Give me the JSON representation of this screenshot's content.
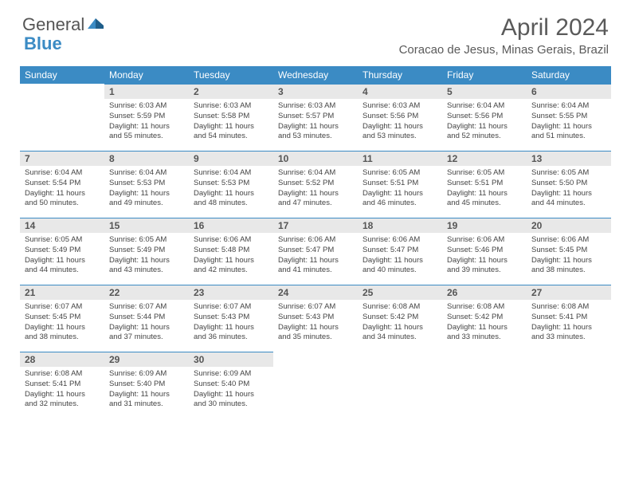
{
  "logo": {
    "word1": "General",
    "word2": "Blue"
  },
  "title": "April 2024",
  "location": "Coracao de Jesus, Minas Gerais, Brazil",
  "colors": {
    "header_bg": "#3b8bc4",
    "header_fg": "#ffffff",
    "daynum_bg": "#e8e8e8",
    "text": "#444444",
    "title": "#5a5a5a"
  },
  "weekdays": [
    "Sunday",
    "Monday",
    "Tuesday",
    "Wednesday",
    "Thursday",
    "Friday",
    "Saturday"
  ],
  "weeks": [
    [
      {
        "empty": true
      },
      {
        "n": "1",
        "sunrise": "6:03 AM",
        "sunset": "5:59 PM",
        "dh": "11",
        "dm": "55"
      },
      {
        "n": "2",
        "sunrise": "6:03 AM",
        "sunset": "5:58 PM",
        "dh": "11",
        "dm": "54"
      },
      {
        "n": "3",
        "sunrise": "6:03 AM",
        "sunset": "5:57 PM",
        "dh": "11",
        "dm": "53"
      },
      {
        "n": "4",
        "sunrise": "6:03 AM",
        "sunset": "5:56 PM",
        "dh": "11",
        "dm": "53"
      },
      {
        "n": "5",
        "sunrise": "6:04 AM",
        "sunset": "5:56 PM",
        "dh": "11",
        "dm": "52"
      },
      {
        "n": "6",
        "sunrise": "6:04 AM",
        "sunset": "5:55 PM",
        "dh": "11",
        "dm": "51"
      }
    ],
    [
      {
        "n": "7",
        "sunrise": "6:04 AM",
        "sunset": "5:54 PM",
        "dh": "11",
        "dm": "50"
      },
      {
        "n": "8",
        "sunrise": "6:04 AM",
        "sunset": "5:53 PM",
        "dh": "11",
        "dm": "49"
      },
      {
        "n": "9",
        "sunrise": "6:04 AM",
        "sunset": "5:53 PM",
        "dh": "11",
        "dm": "48"
      },
      {
        "n": "10",
        "sunrise": "6:04 AM",
        "sunset": "5:52 PM",
        "dh": "11",
        "dm": "47"
      },
      {
        "n": "11",
        "sunrise": "6:05 AM",
        "sunset": "5:51 PM",
        "dh": "11",
        "dm": "46"
      },
      {
        "n": "12",
        "sunrise": "6:05 AM",
        "sunset": "5:51 PM",
        "dh": "11",
        "dm": "45"
      },
      {
        "n": "13",
        "sunrise": "6:05 AM",
        "sunset": "5:50 PM",
        "dh": "11",
        "dm": "44"
      }
    ],
    [
      {
        "n": "14",
        "sunrise": "6:05 AM",
        "sunset": "5:49 PM",
        "dh": "11",
        "dm": "44"
      },
      {
        "n": "15",
        "sunrise": "6:05 AM",
        "sunset": "5:49 PM",
        "dh": "11",
        "dm": "43"
      },
      {
        "n": "16",
        "sunrise": "6:06 AM",
        "sunset": "5:48 PM",
        "dh": "11",
        "dm": "42"
      },
      {
        "n": "17",
        "sunrise": "6:06 AM",
        "sunset": "5:47 PM",
        "dh": "11",
        "dm": "41"
      },
      {
        "n": "18",
        "sunrise": "6:06 AM",
        "sunset": "5:47 PM",
        "dh": "11",
        "dm": "40"
      },
      {
        "n": "19",
        "sunrise": "6:06 AM",
        "sunset": "5:46 PM",
        "dh": "11",
        "dm": "39"
      },
      {
        "n": "20",
        "sunrise": "6:06 AM",
        "sunset": "5:45 PM",
        "dh": "11",
        "dm": "38"
      }
    ],
    [
      {
        "n": "21",
        "sunrise": "6:07 AM",
        "sunset": "5:45 PM",
        "dh": "11",
        "dm": "38"
      },
      {
        "n": "22",
        "sunrise": "6:07 AM",
        "sunset": "5:44 PM",
        "dh": "11",
        "dm": "37"
      },
      {
        "n": "23",
        "sunrise": "6:07 AM",
        "sunset": "5:43 PM",
        "dh": "11",
        "dm": "36"
      },
      {
        "n": "24",
        "sunrise": "6:07 AM",
        "sunset": "5:43 PM",
        "dh": "11",
        "dm": "35"
      },
      {
        "n": "25",
        "sunrise": "6:08 AM",
        "sunset": "5:42 PM",
        "dh": "11",
        "dm": "34"
      },
      {
        "n": "26",
        "sunrise": "6:08 AM",
        "sunset": "5:42 PM",
        "dh": "11",
        "dm": "33"
      },
      {
        "n": "27",
        "sunrise": "6:08 AM",
        "sunset": "5:41 PM",
        "dh": "11",
        "dm": "33"
      }
    ],
    [
      {
        "n": "28",
        "sunrise": "6:08 AM",
        "sunset": "5:41 PM",
        "dh": "11",
        "dm": "32"
      },
      {
        "n": "29",
        "sunrise": "6:09 AM",
        "sunset": "5:40 PM",
        "dh": "11",
        "dm": "31"
      },
      {
        "n": "30",
        "sunrise": "6:09 AM",
        "sunset": "5:40 PM",
        "dh": "11",
        "dm": "30"
      },
      {
        "empty": true
      },
      {
        "empty": true
      },
      {
        "empty": true
      },
      {
        "empty": true
      }
    ]
  ],
  "labels": {
    "sunrise_prefix": "Sunrise: ",
    "sunset_prefix": "Sunset: ",
    "daylight_prefix": "Daylight: ",
    "hours_word": " hours",
    "and_word": "and ",
    "minutes_word": " minutes."
  }
}
